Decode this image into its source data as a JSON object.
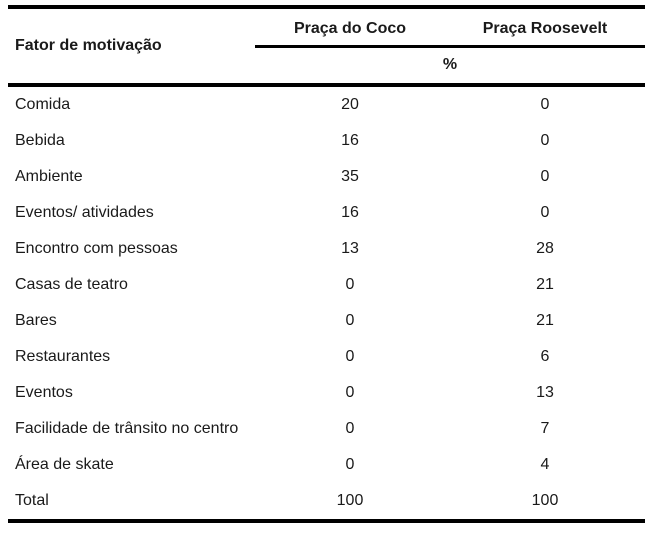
{
  "page": {
    "background_color": "#ffffff",
    "text_color": "#1a1a1a",
    "rule_color": "#000000"
  },
  "chart_data": {
    "type": "table",
    "row_header": "Fator de motivação",
    "columns": [
      "Praça do Coco",
      "Praça Roosevelt"
    ],
    "unit_label": "%",
    "rows": [
      {
        "label": "Comida",
        "values": [
          "20",
          "0"
        ]
      },
      {
        "label": "Bebida",
        "values": [
          "16",
          "0"
        ]
      },
      {
        "label": "Ambiente",
        "values": [
          "35",
          "0"
        ]
      },
      {
        "label": "Eventos/ atividades",
        "values": [
          "16",
          "0"
        ]
      },
      {
        "label": "Encontro com pessoas",
        "values": [
          "13",
          "28"
        ]
      },
      {
        "label": "Casas de teatro",
        "values": [
          "0",
          "21"
        ]
      },
      {
        "label": "Bares",
        "values": [
          "0",
          "21"
        ]
      },
      {
        "label": "Restaurantes",
        "values": [
          "0",
          "6"
        ]
      },
      {
        "label": "Eventos",
        "values": [
          "0",
          "13"
        ]
      },
      {
        "label": "Facilidade de trânsito no centro",
        "values": [
          "0",
          "7"
        ]
      },
      {
        "label": "Área de skate",
        "values": [
          "0",
          "4"
        ]
      },
      {
        "label": "Total",
        "values": [
          "100",
          "100"
        ]
      }
    ]
  }
}
